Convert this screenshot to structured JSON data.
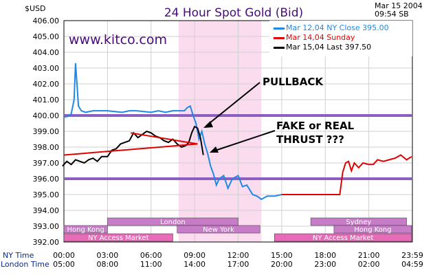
{
  "chart_data": {
    "type": "line",
    "title": "24 Hour Spot Gold (Bid)",
    "unit_label": "$USD",
    "timestamp": [
      "Mar 15 2004",
      "09:54 SB"
    ],
    "watermark": "www.kitco.com",
    "ylim": [
      392,
      406
    ],
    "yticks": [
      "406.00",
      "405.00",
      "404.00",
      "403.00",
      "402.00",
      "401.00",
      "400.00",
      "399.00",
      "398.00",
      "397.00",
      "396.00",
      "395.00",
      "394.00",
      "393.00",
      "392.00"
    ],
    "x_row_labels": [
      "NY Time",
      "London Time"
    ],
    "ny_ticks": [
      "00:00",
      "03:00",
      "06:00",
      "09:00",
      "12:00",
      "15:00",
      "18:00",
      "21:00",
      "23:59"
    ],
    "london_ticks": [
      "05:00",
      "08:00",
      "11:00",
      "14:00",
      "17:00",
      "20:00",
      "23:00",
      "02:00",
      "04:59"
    ],
    "legend": [
      {
        "text": "Mar 12,04 NY Close 395.00",
        "color": "#1e88e5"
      },
      {
        "text": "Mar 14,04          Sunday",
        "color": "#e00000"
      },
      {
        "text": "Mar 15,04 Last 397.50",
        "color": "#000000"
      }
    ],
    "series": [
      {
        "name": "Mar 12,04",
        "color": "#1e88e5",
        "x_hours": [
          0,
          0.3,
          0.5,
          0.7,
          0.8,
          0.9,
          1.0,
          1.2,
          1.5,
          2,
          2.5,
          3,
          3.5,
          4,
          4.5,
          5,
          5.5,
          6,
          6.5,
          7,
          7.5,
          8,
          8.3,
          8.5,
          8.7,
          8.9,
          9.1,
          9.3,
          9.5,
          9.7,
          9.9,
          10.1,
          10.3,
          10.5,
          10.7,
          11,
          11.3,
          11.6,
          12,
          12.3,
          12.6,
          13,
          13.3,
          13.6,
          14,
          14.5,
          15
        ],
        "values": [
          399.9,
          399.95,
          400.1,
          401.0,
          403.3,
          402.0,
          400.6,
          400.3,
          400.2,
          400.3,
          400.3,
          400.3,
          400.25,
          400.2,
          400.3,
          400.3,
          400.25,
          400.2,
          400.3,
          400.2,
          400.3,
          400.3,
          400.3,
          400.5,
          400.6,
          400.0,
          399.5,
          398.5,
          399.0,
          398.2,
          397.6,
          396.8,
          396.3,
          395.6,
          396.0,
          396.2,
          395.4,
          396.0,
          396.2,
          395.5,
          395.6,
          395.0,
          394.9,
          394.7,
          394.9,
          394.9,
          395.0
        ]
      },
      {
        "name": "Mar 14,04",
        "color": "#e00000",
        "x_hours": [
          15,
          15.5,
          16,
          16.5,
          17,
          17.5,
          18,
          18.5,
          19,
          19.2,
          19.4,
          19.6,
          19.8,
          20,
          20.3,
          20.6,
          21,
          21.3,
          21.6,
          22,
          22.4,
          22.8,
          23.2,
          23.6,
          23.95
        ],
        "values": [
          395.0,
          395.0,
          395.0,
          395.0,
          395.0,
          395.0,
          395.0,
          395.0,
          395.0,
          396.4,
          397.0,
          397.1,
          396.5,
          397.0,
          396.7,
          397.0,
          396.9,
          396.9,
          397.2,
          397.1,
          397.2,
          397.3,
          397.5,
          397.2,
          397.4
        ]
      },
      {
        "name": "Mar 15,04",
        "color": "#000000",
        "x_hours": [
          -0.1,
          0.2,
          0.5,
          0.8,
          1.1,
          1.4,
          1.7,
          2.0,
          2.3,
          2.6,
          3.0,
          3.3,
          3.6,
          3.9,
          4.2,
          4.5,
          4.8,
          5.1,
          5.4,
          5.7,
          6.0,
          6.3,
          6.6,
          6.9,
          7.2,
          7.5,
          7.8,
          8.1,
          8.4,
          8.6,
          8.8,
          9.0,
          9.2,
          9.4,
          9.6
        ],
        "values": [
          396.8,
          397.1,
          396.9,
          397.2,
          397.1,
          397.0,
          397.2,
          397.3,
          397.1,
          397.4,
          397.4,
          397.8,
          397.9,
          398.2,
          398.3,
          398.4,
          398.9,
          398.6,
          398.8,
          399.0,
          398.9,
          398.7,
          398.6,
          398.4,
          398.3,
          398.5,
          398.2,
          398.0,
          398.1,
          398.3,
          398.9,
          399.3,
          399.2,
          398.6,
          397.5
        ]
      }
    ],
    "annotations": {
      "pullback": "PULLBACK",
      "thrust": [
        "FAKE or REAL",
        "THRUST ???"
      ]
    },
    "horizontal_lines": [
      400.0,
      396.0
    ],
    "trendline": {
      "from": [
        0,
        397.5
      ],
      "to": [
        9.2,
        398.2
      ]
    },
    "highlight_band_hours": [
      7.9,
      13.6
    ],
    "session_bars": [
      {
        "label": "London",
        "start": 3,
        "end": 12,
        "row": 1,
        "color": "#c77cc7"
      },
      {
        "label": "Sydney",
        "start": 17,
        "end": 23.6,
        "row": 1,
        "color": "#c77cc7"
      },
      {
        "label": "Hong Kong",
        "start": -0.1,
        "end": 3.0,
        "row": 2,
        "color": "#c77cc7"
      },
      {
        "label": "New York",
        "start": 7.8,
        "end": 13.5,
        "row": 2,
        "color": "#c77cc7"
      },
      {
        "label": "Hong Kong",
        "start": 18.6,
        "end": 23.95,
        "row": 2,
        "color": "#c77cc7"
      },
      {
        "label": "NY Access Market",
        "start": -0.1,
        "end": 7.5,
        "row": 3,
        "color": "#e66cb8"
      },
      {
        "label": "NY Access Market",
        "start": 14.5,
        "end": 23.95,
        "row": 3,
        "color": "#e66cb8"
      }
    ]
  }
}
